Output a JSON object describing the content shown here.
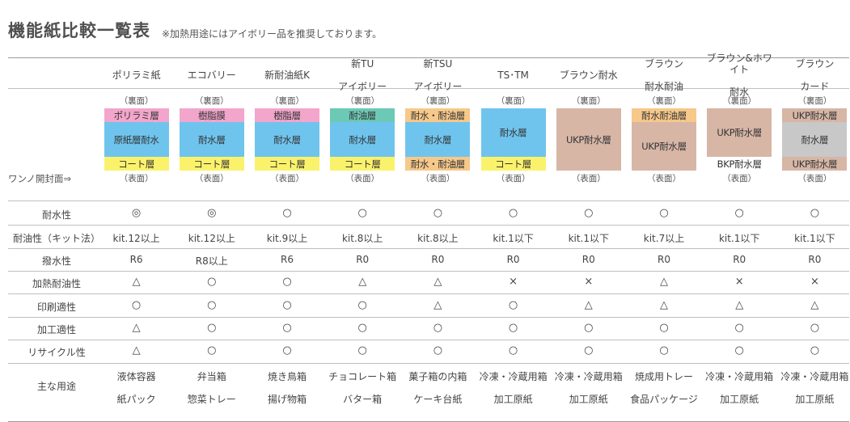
{
  "title": "機能紙比較一覧表",
  "note": "※加熱用途にはアイボリー品を推奨しております。",
  "seal_label": "ワンノ開封面⇒",
  "back_label": "（裏面）",
  "front_label": "（表面）",
  "colors": {
    "pink": "#f2a6cc",
    "blue": "#6fc4ee",
    "yellow": "#fbf26c",
    "teal": "#6cc9b6",
    "orange": "#f6c88a",
    "brown": "#d7b6a6",
    "gray": "#c8c8c8",
    "white": "#ffffff"
  },
  "columns": [
    {
      "name": "ポリラミ紙",
      "layers": [
        {
          "label": "ポリラミ層",
          "color": "#f2a6cc",
          "size": "thin"
        },
        {
          "label": "原紙層耐水",
          "color": "#6fc4ee",
          "size": "full"
        },
        {
          "label": "コート層",
          "color": "#fbf26c",
          "size": "thin"
        }
      ]
    },
    {
      "name": "エコバリー",
      "layers": [
        {
          "label": "樹脂膜",
          "color": "#f2a6cc",
          "size": "thin"
        },
        {
          "label": "耐水層",
          "color": "#6fc4ee",
          "size": "full"
        },
        {
          "label": "コート層",
          "color": "#fbf26c",
          "size": "thin"
        }
      ]
    },
    {
      "name": "新耐油紙K",
      "layers": [
        {
          "label": "樹脂層",
          "color": "#f2a6cc",
          "size": "thin"
        },
        {
          "label": "耐水層",
          "color": "#6fc4ee",
          "size": "full"
        },
        {
          "label": "コート層",
          "color": "#fbf26c",
          "size": "thin"
        }
      ]
    },
    {
      "name": "新TU\nアイボリー",
      "layers": [
        {
          "label": "耐油層",
          "color": "#6cc9b6",
          "size": "thin"
        },
        {
          "label": "耐水層",
          "color": "#6fc4ee",
          "size": "full"
        },
        {
          "label": "コート層",
          "color": "#fbf26c",
          "size": "thin"
        }
      ]
    },
    {
      "name": "新TSU\nアイボリー",
      "layers": [
        {
          "label": "耐水・耐油層",
          "color": "#f6c88a",
          "size": "thin"
        },
        {
          "label": "耐水層",
          "color": "#6fc4ee",
          "size": "full"
        },
        {
          "label": "耐水・耐油層",
          "color": "#f6c88a",
          "size": "thin"
        }
      ]
    },
    {
      "name": "TS･TM",
      "layers": [
        {
          "label": "耐水層",
          "color": "#6fc4ee",
          "size": "full"
        },
        {
          "label": "コート層",
          "color": "#fbf26c",
          "size": "thin"
        }
      ]
    },
    {
      "name": "ブラウン耐水",
      "layers": [
        {
          "label": "UKP耐水層",
          "color": "#d7b6a6",
          "size": "full"
        }
      ]
    },
    {
      "name": "ブラウン\n耐水耐油",
      "layers": [
        {
          "label": "耐水耐油層",
          "color": "#f6c88a",
          "size": "thin"
        },
        {
          "label": "UKP耐水層",
          "color": "#d7b6a6",
          "size": "full"
        }
      ]
    },
    {
      "name": "ブラウン&ホワイト\n耐水",
      "layers": [
        {
          "label": "UKP耐水層",
          "color": "#d7b6a6",
          "size": "full"
        },
        {
          "label": "BKP耐水層",
          "color": "#ffffff",
          "size": "thin"
        }
      ]
    },
    {
      "name": "ブラウン\nカード",
      "layers": [
        {
          "label": "UKP耐水層",
          "color": "#d7b6a6",
          "size": "thin"
        },
        {
          "label": "耐水層",
          "color": "#c8c8c8",
          "size": "full"
        },
        {
          "label": "UKP耐水層",
          "color": "#d7b6a6",
          "size": "thin"
        }
      ]
    }
  ],
  "rows": [
    {
      "label": "耐水性",
      "values": [
        "◎",
        "◎",
        "○",
        "○",
        "○",
        "○",
        "○",
        "○",
        "○",
        "○"
      ]
    },
    {
      "label": "耐油性（キット法）",
      "values": [
        "kit.12以上",
        "kit.12以上",
        "kit.9以上",
        "kit.8以上",
        "kit.8以上",
        "kit.1以下",
        "kit.1以下",
        "kit.7以上",
        "kit.1以下",
        "kit.1以下"
      ]
    },
    {
      "label": "撥水性",
      "values": [
        "R6",
        "R8以上",
        "R6",
        "R0",
        "R0",
        "R0",
        "R0",
        "R0",
        "R0",
        "R0"
      ]
    },
    {
      "label": "加熱耐油性",
      "values": [
        "△",
        "○",
        "○",
        "△",
        "△",
        "×",
        "×",
        "△",
        "×",
        "×"
      ]
    },
    {
      "label": "印刷適性",
      "values": [
        "○",
        "○",
        "○",
        "○",
        "△",
        "○",
        "△",
        "△",
        "△",
        "△"
      ]
    },
    {
      "label": "加工適性",
      "values": [
        "△",
        "○",
        "○",
        "○",
        "○",
        "○",
        "○",
        "○",
        "○",
        "○"
      ]
    },
    {
      "label": "リサイクル性",
      "values": [
        "△",
        "○",
        "○",
        "○",
        "○",
        "○",
        "○",
        "○",
        "○",
        "○"
      ]
    }
  ],
  "uses": {
    "label": "主な用途",
    "line1": [
      "液体容器",
      "弁当箱",
      "焼き鳥箱",
      "チョコレート箱",
      "菓子箱の内箱",
      "冷凍・冷蔵用箱",
      "冷凍・冷蔵用箱",
      "焼成用トレー",
      "冷凍・冷蔵用箱",
      "冷凍・冷蔵用箱"
    ],
    "line2": [
      "紙パック",
      "惣菜トレー",
      "揚げ物箱",
      "バター箱",
      "ケーキ台紙",
      "加工原紙",
      "加工原紙",
      "食品パッケージ",
      "加工原紙",
      "加工原紙"
    ]
  }
}
